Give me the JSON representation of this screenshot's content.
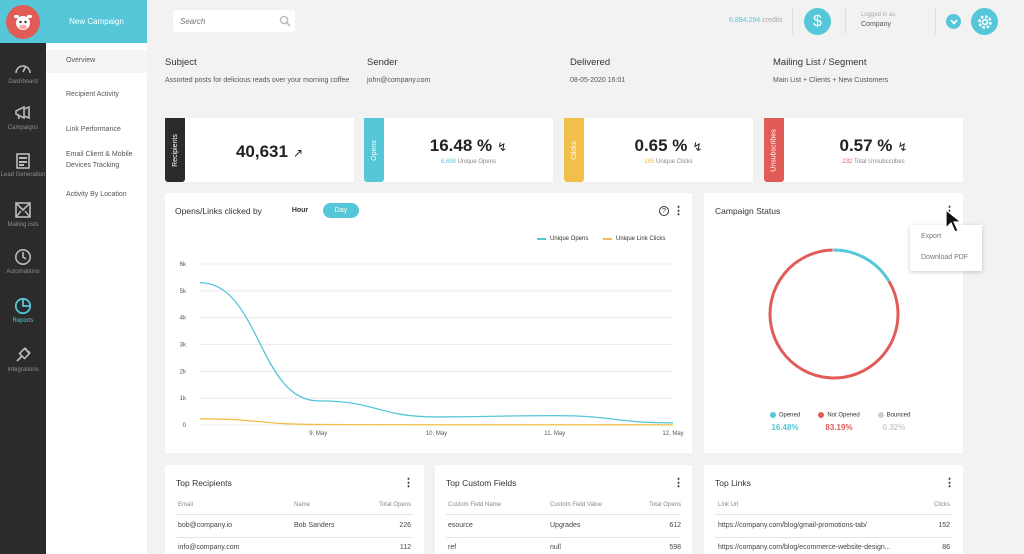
{
  "rail": {
    "items": [
      {
        "label": "Dashboard",
        "icon": "gauge-icon"
      },
      {
        "label": "Campaigns",
        "icon": "megaphone-icon"
      },
      {
        "label": "Lead Generation",
        "icon": "form-icon"
      },
      {
        "label": "Mailing lists",
        "icon": "envelope-list-icon"
      },
      {
        "label": "Automations",
        "icon": "clock-icon"
      },
      {
        "label": "Reports",
        "icon": "pie-icon"
      },
      {
        "label": "Integrations",
        "icon": "plug-icon"
      }
    ]
  },
  "subnav": {
    "new_campaign": "New Campaign",
    "items": [
      "Overview",
      "Recipient Activity",
      "Link Performance",
      "Email Client & Mobile Devices Tracking",
      "Activity By Location"
    ]
  },
  "topbar": {
    "search_placeholder": "Search",
    "credits_value": "6,884,294",
    "credits_label": "credits",
    "logged_in_label": "Logged in as",
    "company": "Company"
  },
  "summary": {
    "subject_h": "Subject",
    "subject_v": "Assorted posts for delicious reads over your morning coffee",
    "sender_h": "Sender",
    "sender_v": "john@company.com",
    "delivered_h": "Delivered",
    "delivered_v": "08-05-2020 16:01",
    "list_h": "Mailing List / Segment",
    "list_v": "Main List + Clients + New Customers"
  },
  "stats": [
    {
      "tab": "Recipients",
      "big": "40,631",
      "small_num": "",
      "small_label": "",
      "color": "#2b2b2b"
    },
    {
      "tab": "Opens",
      "big": "16.48 %",
      "small_num": "6,698",
      "small_label": "Unique Opens",
      "color": "#55c7d8"
    },
    {
      "tab": "Clicks",
      "big": "0.65 %",
      "small_num": "265",
      "small_label": "Unique Clicks",
      "color": "#f0c04a"
    },
    {
      "tab": "Unsubscribes",
      "big": "0.57 %",
      "small_num": "232",
      "small_label": "Total Unsubscribes",
      "color": "#e15b57"
    }
  ],
  "chart_card": {
    "title": "Opens/Links clicked by",
    "hour": "Hour",
    "day": "Day"
  },
  "chart_data": {
    "type": "line",
    "x": [
      "8. May",
      "9. May",
      "10. May",
      "11. May",
      "12. May"
    ],
    "x_tick_labels": [
      "9. May",
      "10. May",
      "11. May",
      "12. May"
    ],
    "y_tick_labels": [
      "0",
      "1k",
      "2k",
      "3k",
      "4k",
      "5k",
      "6k"
    ],
    "ylim": [
      0,
      6000
    ],
    "series": [
      {
        "name": "Unique Opens",
        "color": "#55c7d8",
        "values": [
          5300,
          900,
          300,
          350,
          80
        ]
      },
      {
        "name": "Unique Link Clicks",
        "color": "#f0c04a",
        "values": [
          230,
          20,
          10,
          10,
          5
        ]
      }
    ]
  },
  "status": {
    "title": "Campaign Status",
    "menu": [
      "Export",
      "Download PDF"
    ],
    "items": [
      {
        "label": "Opened",
        "pct": "16.48%",
        "value": 16.48,
        "color": "#55c7d8"
      },
      {
        "label": "Not Opened",
        "pct": "83.19%",
        "value": 83.19,
        "color": "#e15b57"
      },
      {
        "label": "Bounced",
        "pct": "0.32%",
        "value": 0.32,
        "color": "#cccccc"
      }
    ]
  },
  "tables": [
    {
      "title": "Top Recipients",
      "headers": [
        "Email",
        "Name",
        "Total Opens"
      ],
      "rows": [
        [
          "bob@company.io",
          "Bob Sanders",
          "226"
        ],
        [
          "info@company.com",
          "",
          "112"
        ]
      ]
    },
    {
      "title": "Top Custom Fields",
      "headers": [
        "Custom Field Name",
        "Custom Field Value",
        "Total Opens"
      ],
      "rows": [
        [
          "esource",
          "Upgrades",
          "612"
        ],
        [
          "ref",
          "null",
          "598"
        ]
      ]
    },
    {
      "title": "Top Links",
      "headers": [
        "Link Url",
        "",
        "Clicks"
      ],
      "rows": [
        [
          "https://company.com/blog/gmail-promotions-tab/",
          "",
          "152"
        ],
        [
          "https://company.com/blog/ecommerce-website-design...",
          "",
          "86"
        ]
      ]
    }
  ]
}
